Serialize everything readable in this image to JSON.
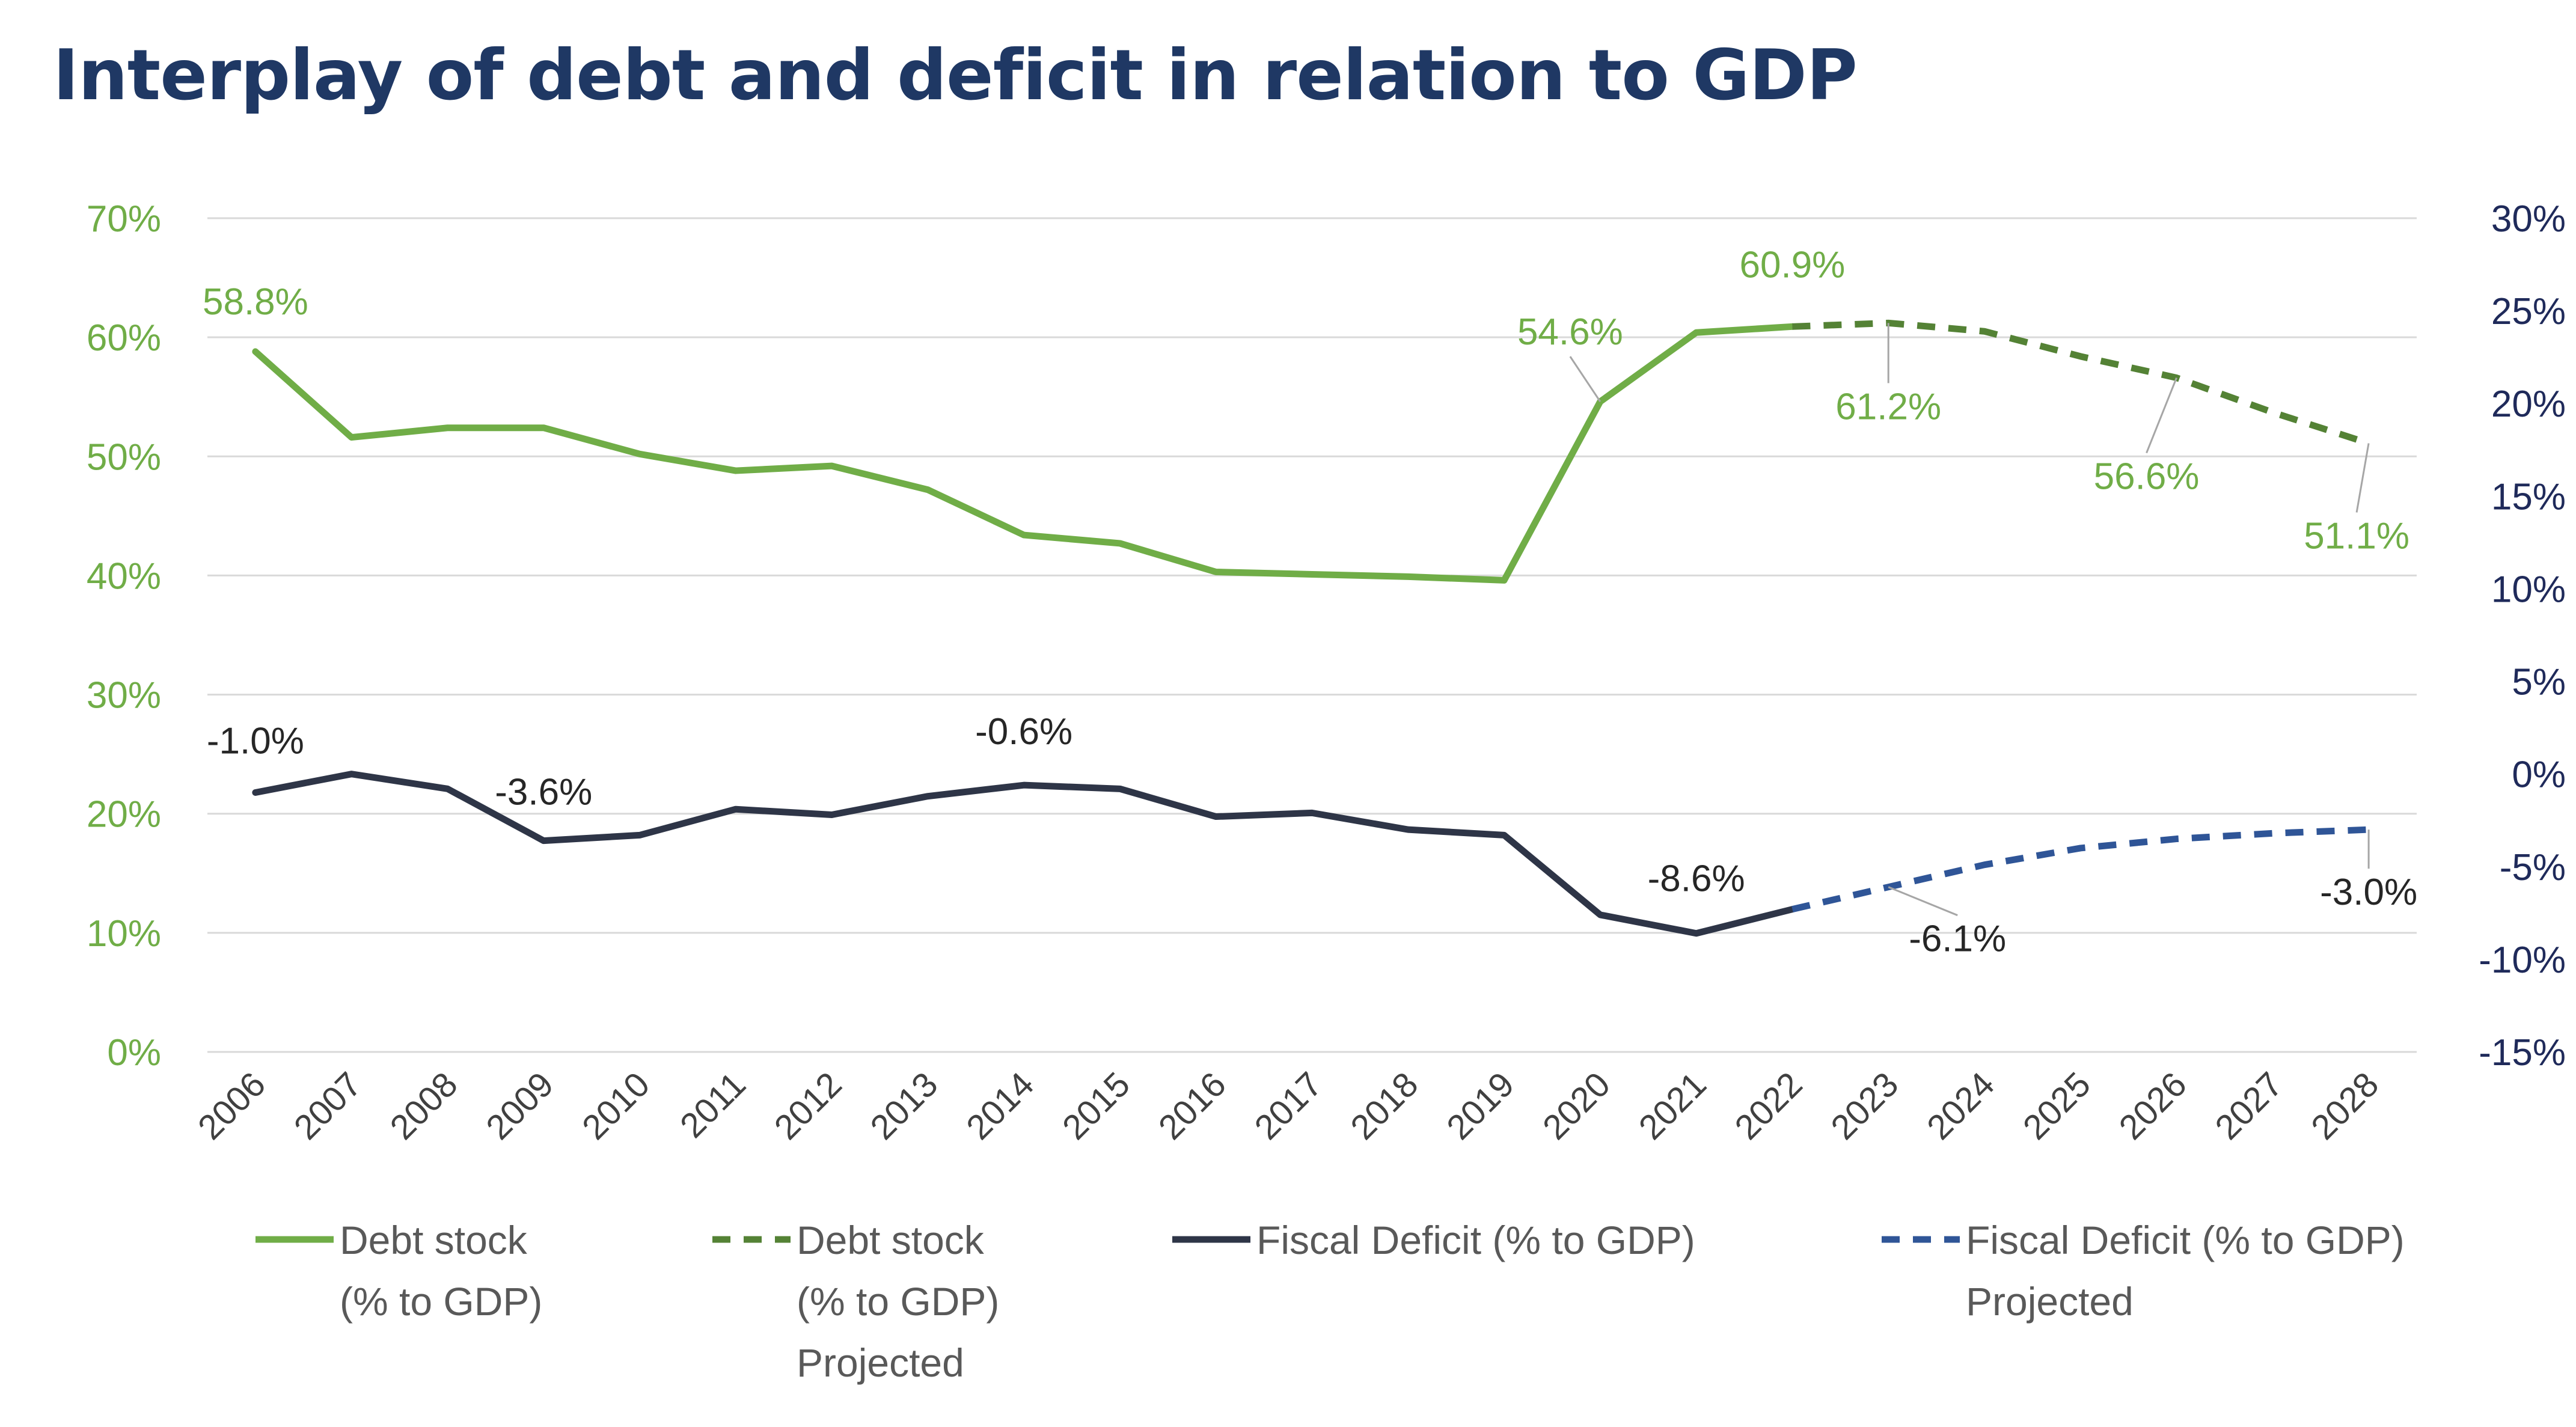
{
  "title": "Interplay of debt and deficit in relation to GDP",
  "colors": {
    "debt": "#70ad47",
    "debt_projected": "#548235",
    "deficit": "#2e3547",
    "deficit_projected": "#2f5597",
    "grid": "#d9d9d9",
    "title": "#1f3864"
  },
  "chart_data": {
    "type": "line",
    "title": "Interplay of debt and deficit in relation to GDP",
    "x": [
      "2006",
      "2007",
      "2008",
      "2009",
      "2010",
      "2011",
      "2012",
      "2013",
      "2014",
      "2015",
      "2016",
      "2017",
      "2018",
      "2019",
      "2020",
      "2021",
      "2022",
      "2023",
      "2024",
      "2025",
      "2026",
      "2027",
      "2028"
    ],
    "y_left": {
      "ylim": [
        0,
        70
      ],
      "ticks": [
        "0%",
        "10%",
        "20%",
        "30%",
        "40%",
        "50%",
        "60%",
        "70%"
      ]
    },
    "y_right": {
      "ylim": [
        -15,
        30
      ],
      "ticks": [
        "-15%",
        "-10%",
        "-5%",
        "0%",
        "5%",
        "10%",
        "15%",
        "20%",
        "25%",
        "30%"
      ]
    },
    "grid": true,
    "legend_position": "bottom",
    "series": [
      {
        "name": "Debt stock (%  to GDP)",
        "legend_lines": [
          "Debt stock",
          "(%  to GDP)"
        ],
        "axis": "left",
        "style": "solid",
        "x": [
          "2006",
          "2007",
          "2008",
          "2009",
          "2010",
          "2011",
          "2012",
          "2013",
          "2014",
          "2015",
          "2016",
          "2017",
          "2018",
          "2019",
          "2020",
          "2021",
          "2022"
        ],
        "values": [
          58.8,
          51.6,
          52.4,
          52.4,
          50.2,
          48.8,
          49.2,
          47.2,
          43.4,
          42.7,
          40.3,
          40.1,
          39.9,
          39.6,
          54.6,
          60.4,
          60.9
        ]
      },
      {
        "name": "Debt stock (%  to GDP) Projected",
        "legend_lines": [
          "Debt stock",
          "(%  to GDP)",
          "Projected"
        ],
        "axis": "left",
        "style": "dashed",
        "x": [
          "2022",
          "2023",
          "2024",
          "2025",
          "2026",
          "2027",
          "2028"
        ],
        "values": [
          60.9,
          61.2,
          60.5,
          58.4,
          56.6,
          53.7,
          51.1
        ]
      },
      {
        "name": "Fiscal Deficit (% to GDP)",
        "legend_lines": [
          "Fiscal Deficit (% to GDP)"
        ],
        "axis": "right",
        "style": "solid",
        "x": [
          "2006",
          "2007",
          "2008",
          "2009",
          "2010",
          "2011",
          "2012",
          "2013",
          "2014",
          "2015",
          "2016",
          "2017",
          "2018",
          "2019",
          "2020",
          "2021",
          "2022"
        ],
        "values": [
          -1.0,
          0.0,
          -0.8,
          -3.6,
          -3.3,
          -1.9,
          -2.2,
          -1.2,
          -0.6,
          -0.8,
          -2.3,
          -2.1,
          -3.0,
          -3.3,
          -7.6,
          -8.6,
          -7.3
        ]
      },
      {
        "name": "Fiscal Deficit (% to GDP) Projected",
        "legend_lines": [
          "Fiscal Deficit (% to GDP)",
          "Projected"
        ],
        "axis": "right",
        "style": "dashed",
        "x": [
          "2022",
          "2023",
          "2024",
          "2025",
          "2026",
          "2027",
          "2028"
        ],
        "values": [
          -7.3,
          -6.1,
          -4.9,
          -4.0,
          -3.5,
          -3.2,
          -3.0
        ]
      }
    ],
    "annotations": [
      {
        "text": "58.8%",
        "series": "debt",
        "x": "2006"
      },
      {
        "text": "54.6%",
        "series": "debt",
        "x": "2020"
      },
      {
        "text": "60.9%",
        "series": "debt",
        "x": "2022"
      },
      {
        "text": "61.2%",
        "series": "debt",
        "x": "2023"
      },
      {
        "text": "56.6%",
        "series": "debt",
        "x": "2026"
      },
      {
        "text": "51.1%",
        "series": "debt",
        "x": "2028"
      },
      {
        "text": "-1.0%",
        "series": "deficit",
        "x": "2006"
      },
      {
        "text": "-3.6%",
        "series": "deficit",
        "x": "2009"
      },
      {
        "text": "-0.6%",
        "series": "deficit",
        "x": "2014"
      },
      {
        "text": "-8.6%",
        "series": "deficit",
        "x": "2021"
      },
      {
        "text": "-6.1%",
        "series": "deficit",
        "x": "2023"
      },
      {
        "text": "-3.0%",
        "series": "deficit",
        "x": "2028"
      }
    ]
  }
}
